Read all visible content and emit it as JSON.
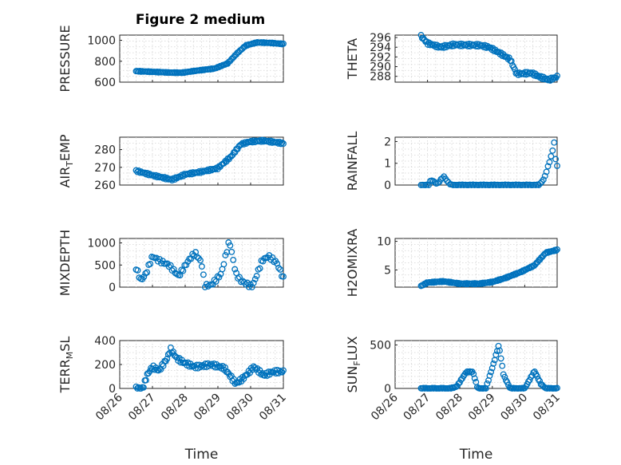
{
  "figure": {
    "title": "Figure 2 medium",
    "marker_color": "#0072BD",
    "xlabel": "Time",
    "xticks": [
      "08/26",
      "08/27",
      "08/28",
      "08/29",
      "08/30",
      "08/31"
    ]
  },
  "chart_data": [
    {
      "type": "scatter",
      "column": "left",
      "row": 0,
      "ylabel_main": "PRESSURE",
      "ylabel_sub": "",
      "xlim": [
        0,
        5
      ],
      "ylim": [
        600,
        1050
      ],
      "yticks": [
        600,
        800,
        1000
      ],
      "ytick_labels": [
        "600",
        "800",
        "1000"
      ],
      "x_start": 0.5,
      "x_end": 5,
      "knots": [
        [
          0.5,
          705
        ],
        [
          1.5,
          692
        ],
        [
          1.9,
          690
        ],
        [
          2.4,
          712
        ],
        [
          2.9,
          730
        ],
        [
          3.3,
          780
        ],
        [
          3.6,
          880
        ],
        [
          3.85,
          950
        ],
        [
          4.2,
          980
        ],
        [
          4.6,
          975
        ],
        [
          5,
          965
        ]
      ],
      "noise": 3,
      "n": 120,
      "series": [
        {
          "name": "",
          "color": "#0072BD"
        }
      ]
    },
    {
      "type": "scatter",
      "column": "right",
      "row": 0,
      "ylabel_main": "THETA",
      "ylabel_sub": "",
      "xlim": [
        0,
        5
      ],
      "ylim": [
        286.8,
        296.5
      ],
      "yticks": [
        288,
        290,
        292,
        294,
        296
      ],
      "ytick_labels": [
        "288",
        "290",
        "292",
        "294",
        "296"
      ],
      "x_start": 0.8,
      "x_end": 5,
      "knots": [
        [
          0.8,
          296.3
        ],
        [
          1.0,
          294.8
        ],
        [
          1.4,
          294
        ],
        [
          1.8,
          294.5
        ],
        [
          2.6,
          294.4
        ],
        [
          2.9,
          294
        ],
        [
          3.2,
          292.9
        ],
        [
          3.55,
          291.5
        ],
        [
          3.75,
          288.5
        ],
        [
          4.2,
          288.7
        ],
        [
          4.5,
          287.8
        ],
        [
          4.75,
          287.3
        ],
        [
          5,
          287.9
        ]
      ],
      "noise": 0.25,
      "n": 120,
      "series": [
        {
          "name": "",
          "color": "#0072BD"
        }
      ]
    },
    {
      "type": "scatter",
      "column": "left",
      "row": 1,
      "ylabel_main": "AIR",
      "ylabel_sub": "TEMP",
      "xlim": [
        0,
        5
      ],
      "ylim": [
        260,
        287
      ],
      "yticks": [
        260,
        270,
        280
      ],
      "ytick_labels": [
        "260",
        "270",
        "280"
      ],
      "x_start": 0.5,
      "x_end": 5,
      "knots": [
        [
          0.5,
          268
        ],
        [
          1.0,
          265.5
        ],
        [
          1.6,
          263
        ],
        [
          2.0,
          266
        ],
        [
          2.5,
          267.5
        ],
        [
          3.0,
          269.5
        ],
        [
          3.4,
          276
        ],
        [
          3.7,
          283
        ],
        [
          4.0,
          284.5
        ],
        [
          4.4,
          285
        ],
        [
          5,
          283.5
        ]
      ],
      "noise": 0.5,
      "n": 120,
      "series": [
        {
          "name": "",
          "color": "#0072BD"
        }
      ]
    },
    {
      "type": "scatter",
      "column": "right",
      "row": 1,
      "ylabel_main": "RAINFALL",
      "ylabel_sub": "",
      "xlim": [
        0,
        5
      ],
      "ylim": [
        0,
        2.2
      ],
      "yticks": [
        0,
        1,
        2
      ],
      "ytick_labels": [
        "0",
        "1",
        "2"
      ],
      "x_start": 0.8,
      "x_end": 5,
      "knots": [
        [
          0.8,
          0
        ],
        [
          1.05,
          0
        ],
        [
          1.1,
          0.25
        ],
        [
          1.3,
          0.05
        ],
        [
          1.5,
          0.4
        ],
        [
          1.65,
          0.1
        ],
        [
          1.75,
          0
        ],
        [
          4.45,
          0
        ],
        [
          4.6,
          0.3
        ],
        [
          4.75,
          1.0
        ],
        [
          4.85,
          1.5
        ],
        [
          4.9,
          2.05
        ],
        [
          4.95,
          1.2
        ],
        [
          5,
          0.9
        ]
      ],
      "noise": 0.02,
      "n": 90,
      "series": [
        {
          "name": "",
          "color": "#0072BD"
        }
      ]
    },
    {
      "type": "scatter",
      "column": "left",
      "row": 2,
      "ylabel_main": "MIXDEPTH",
      "ylabel_sub": "",
      "xlim": [
        0,
        5
      ],
      "ylim": [
        0,
        1100
      ],
      "yticks": [
        0,
        500,
        1000
      ],
      "ytick_labels": [
        "0",
        "500",
        "1000"
      ],
      "x_start": 0.5,
      "x_end": 5,
      "knots": [
        [
          0.5,
          430
        ],
        [
          0.65,
          150
        ],
        [
          0.8,
          300
        ],
        [
          1.0,
          700
        ],
        [
          1.2,
          600
        ],
        [
          1.5,
          500
        ],
        [
          1.8,
          250
        ],
        [
          2.1,
          600
        ],
        [
          2.3,
          780
        ],
        [
          2.5,
          550
        ],
        [
          2.6,
          30
        ],
        [
          2.8,
          50
        ],
        [
          3.1,
          300
        ],
        [
          3.35,
          1050
        ],
        [
          3.55,
          300
        ],
        [
          3.7,
          150
        ],
        [
          4.05,
          0
        ],
        [
          4.35,
          600
        ],
        [
          4.55,
          700
        ],
        [
          4.8,
          550
        ],
        [
          5,
          200
        ]
      ],
      "noise": 40,
      "n": 95,
      "series": [
        {
          "name": "",
          "color": "#0072BD"
        }
      ]
    },
    {
      "type": "scatter",
      "column": "right",
      "row": 2,
      "ylabel_main": "H2OMIXRA",
      "ylabel_sub": "",
      "xlim": [
        0,
        5
      ],
      "ylim": [
        2,
        10.5
      ],
      "yticks": [
        5,
        10
      ],
      "ytick_labels": [
        "5",
        "10"
      ],
      "x_start": 0.8,
      "x_end": 5,
      "knots": [
        [
          0.8,
          2.2
        ],
        [
          1.0,
          2.8
        ],
        [
          1.5,
          3.0
        ],
        [
          2.0,
          2.6
        ],
        [
          2.6,
          2.6
        ],
        [
          3.0,
          2.9
        ],
        [
          3.4,
          3.6
        ],
        [
          3.9,
          4.7
        ],
        [
          4.3,
          5.8
        ],
        [
          4.65,
          8.0
        ],
        [
          5,
          8.5
        ]
      ],
      "noise": 0.08,
      "n": 120,
      "series": [
        {
          "name": "",
          "color": "#0072BD"
        }
      ]
    },
    {
      "type": "scatter",
      "column": "left",
      "row": 3,
      "ylabel_main": "TERR",
      "ylabel_sub": "MSL",
      "xlim": [
        0,
        5
      ],
      "ylim": [
        0,
        400
      ],
      "yticks": [
        0,
        200,
        400
      ],
      "ytick_labels": [
        "0",
        "200",
        "400"
      ],
      "x_start": 0.5,
      "x_end": 5,
      "knots": [
        [
          0.5,
          0
        ],
        [
          0.7,
          0
        ],
        [
          0.85,
          120
        ],
        [
          1.0,
          180
        ],
        [
          1.2,
          150
        ],
        [
          1.45,
          250
        ],
        [
          1.55,
          330
        ],
        [
          1.75,
          250
        ],
        [
          2.0,
          210
        ],
        [
          2.3,
          180
        ],
        [
          2.8,
          200
        ],
        [
          3.2,
          170
        ],
        [
          3.55,
          40
        ],
        [
          3.75,
          80
        ],
        [
          4.1,
          180
        ],
        [
          4.4,
          110
        ],
        [
          4.7,
          140
        ],
        [
          5,
          140
        ]
      ],
      "noise": 15,
      "n": 120,
      "series": [
        {
          "name": "",
          "color": "#0072BD"
        }
      ]
    },
    {
      "type": "scatter",
      "column": "right",
      "row": 3,
      "ylabel_main": "SUN",
      "ylabel_sub": "FLUX",
      "xlim": [
        0,
        5
      ],
      "ylim": [
        0,
        550
      ],
      "yticks": [
        0,
        500
      ],
      "ytick_labels": [
        "0",
        "500"
      ],
      "x_start": 0.8,
      "x_end": 5,
      "knots": [
        [
          0.8,
          0
        ],
        [
          1.7,
          0
        ],
        [
          1.9,
          20
        ],
        [
          2.2,
          190
        ],
        [
          2.4,
          190
        ],
        [
          2.55,
          0
        ],
        [
          2.8,
          0
        ],
        [
          3.05,
          300
        ],
        [
          3.2,
          500
        ],
        [
          3.35,
          150
        ],
        [
          3.55,
          0
        ],
        [
          4.0,
          0
        ],
        [
          4.3,
          200
        ],
        [
          4.5,
          50
        ],
        [
          4.65,
          0
        ],
        [
          5,
          0
        ]
      ],
      "noise": 5,
      "n": 110,
      "series": [
        {
          "name": "",
          "color": "#0072BD"
        }
      ]
    }
  ]
}
